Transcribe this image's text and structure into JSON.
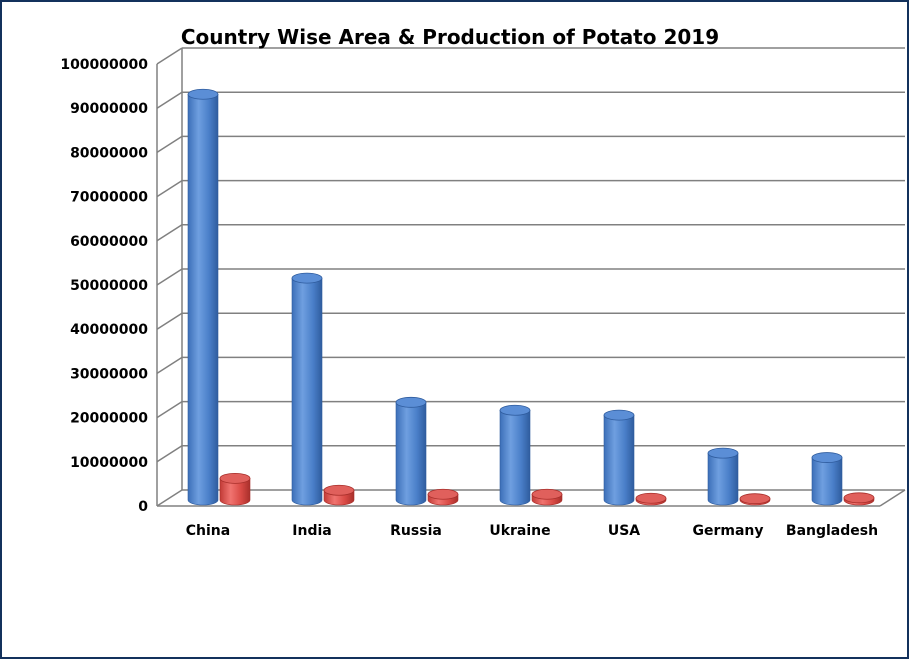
{
  "chart_data": {
    "type": "bar",
    "style": "3d-cylinder",
    "title": "Country Wise Area & Production of Potato 2019",
    "categories": [
      "China",
      "India",
      "Russia",
      "Ukraine",
      "USA",
      "Germany",
      "Bangladesh"
    ],
    "series": [
      {
        "color": "#4a7fc9",
        "values": [
          91800000,
          50200000,
          22100000,
          20300000,
          19200000,
          10600000,
          9600000
        ]
      },
      {
        "color": "#d94a45",
        "values": [
          4900000,
          2200000,
          1300000,
          1300000,
          400000,
          300000,
          500000
        ]
      }
    ],
    "ylim": [
      0,
      100000000
    ],
    "ytick_step": 10000000,
    "grid": true,
    "legend": "none",
    "frame_color": "#13315c"
  }
}
